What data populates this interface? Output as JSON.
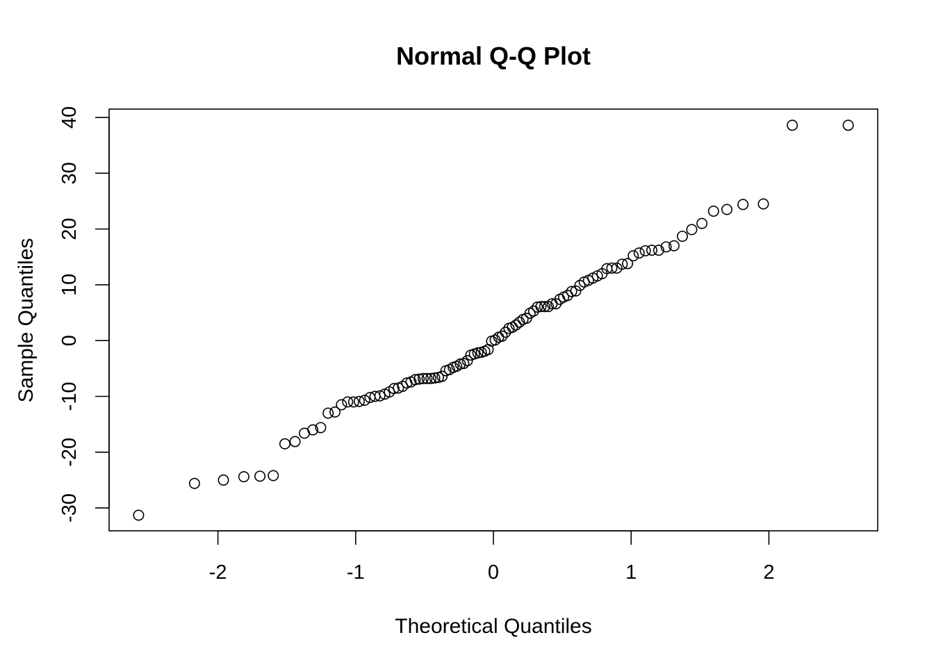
{
  "chart_data": {
    "type": "scatter",
    "title": "Normal Q-Q Plot",
    "xlabel": "Theoretical Quantiles",
    "ylabel": "Sample Quantiles",
    "xlim": [
      -2.79,
      2.79
    ],
    "ylim": [
      -34.1,
      41.5
    ],
    "x_ticks": [
      -2,
      -1,
      0,
      1,
      2
    ],
    "x_tick_labels": [
      "-2",
      "-1",
      "0",
      "1",
      "2"
    ],
    "y_ticks": [
      -30,
      -20,
      -10,
      0,
      10,
      20,
      30,
      40
    ],
    "y_tick_labels": [
      "-30",
      "-20",
      "-10",
      "0",
      "10",
      "20",
      "30",
      "40"
    ],
    "grid": false,
    "legend": "none",
    "point_style": "open-circle",
    "x": [
      -2.576,
      -2.17,
      -1.96,
      -1.812,
      -1.695,
      -1.598,
      -1.514,
      -1.44,
      -1.372,
      -1.311,
      -1.254,
      -1.2,
      -1.15,
      -1.103,
      -1.058,
      -1.015,
      -0.974,
      -0.935,
      -0.896,
      -0.86,
      -0.824,
      -0.789,
      -0.755,
      -0.722,
      -0.69,
      -0.659,
      -0.628,
      -0.598,
      -0.568,
      -0.539,
      -0.51,
      -0.482,
      -0.454,
      -0.426,
      -0.399,
      -0.372,
      -0.345,
      -0.319,
      -0.292,
      -0.266,
      -0.24,
      -0.215,
      -0.189,
      -0.164,
      -0.138,
      -0.113,
      -0.088,
      -0.063,
      -0.038,
      -0.013,
      0.013,
      0.038,
      0.063,
      0.088,
      0.113,
      0.138,
      0.164,
      0.189,
      0.215,
      0.24,
      0.266,
      0.292,
      0.319,
      0.345,
      0.372,
      0.399,
      0.426,
      0.454,
      0.482,
      0.51,
      0.539,
      0.568,
      0.598,
      0.628,
      0.659,
      0.69,
      0.722,
      0.755,
      0.789,
      0.824,
      0.86,
      0.896,
      0.935,
      0.974,
      1.015,
      1.058,
      1.103,
      1.15,
      1.2,
      1.254,
      1.311,
      1.372,
      1.44,
      1.514,
      1.598,
      1.695,
      1.812,
      1.96,
      2.17,
      2.576
    ],
    "y": [
      -31.3,
      -25.6,
      -25.0,
      -24.4,
      -24.3,
      -24.2,
      -18.5,
      -18.1,
      -16.6,
      -16.0,
      -15.6,
      -13.0,
      -12.8,
      -11.5,
      -11.0,
      -11.0,
      -10.9,
      -10.7,
      -10.2,
      -10.0,
      -9.9,
      -9.6,
      -9.2,
      -8.6,
      -8.5,
      -8.2,
      -7.6,
      -7.4,
      -7.0,
      -6.9,
      -6.8,
      -6.8,
      -6.8,
      -6.7,
      -6.6,
      -6.4,
      -5.4,
      -5.2,
      -4.8,
      -4.6,
      -4.2,
      -4.1,
      -3.6,
      -2.6,
      -2.4,
      -2.2,
      -2.1,
      -1.9,
      -1.6,
      -0.1,
      0.1,
      0.6,
      0.8,
      1.5,
      2.2,
      2.4,
      2.8,
      3.3,
      3.8,
      4.0,
      4.9,
      5.3,
      6.0,
      6.1,
      6.1,
      6.1,
      6.6,
      6.6,
      7.4,
      7.8,
      8.1,
      8.8,
      8.9,
      9.9,
      10.5,
      10.8,
      11.2,
      11.6,
      12.0,
      12.9,
      13.0,
      13.0,
      13.7,
      13.8,
      15.2,
      15.7,
      16.1,
      16.2,
      16.2,
      16.8,
      17.0,
      18.7,
      19.9,
      21.0,
      23.2,
      23.5,
      24.4,
      24.5,
      38.6,
      38.6
    ]
  }
}
